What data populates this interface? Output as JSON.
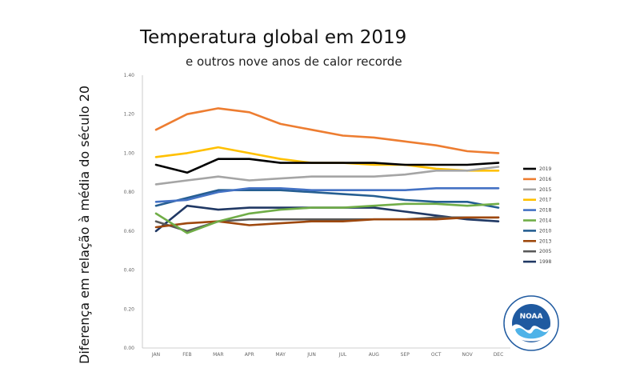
{
  "chart_data": {
    "type": "line",
    "title": "Temperatura global em 2019",
    "subtitle": "e outros nove anos  de calor recorde",
    "xlabel": "",
    "ylabel": "Diferença em relação à média do século 20",
    "categories": [
      "JAN",
      "FEB",
      "MAR",
      "APR",
      "MAY",
      "JUN",
      "JUL",
      "AUG",
      "SEP",
      "OCT",
      "NOV",
      "DEC"
    ],
    "ylim": [
      0,
      1.4
    ],
    "yticks": [
      "0.00",
      "0.20",
      "0.40",
      "0.60",
      "0.80",
      "1.00",
      "1.20",
      "1.40"
    ],
    "grid": false,
    "legend_position": "right",
    "series": [
      {
        "name": "2019",
        "color": "#000000",
        "values": [
          0.94,
          0.9,
          0.97,
          0.97,
          0.95,
          0.95,
          0.95,
          0.95,
          0.94,
          0.94,
          0.94,
          0.95
        ]
      },
      {
        "name": "2016",
        "color": "#ed7d31",
        "values": [
          1.12,
          1.2,
          1.23,
          1.21,
          1.15,
          1.12,
          1.09,
          1.08,
          1.06,
          1.04,
          1.01,
          1.0
        ]
      },
      {
        "name": "2015",
        "color": "#a5a5a5",
        "values": [
          0.84,
          0.86,
          0.88,
          0.86,
          0.87,
          0.88,
          0.88,
          0.88,
          0.89,
          0.91,
          0.91,
          0.93
        ]
      },
      {
        "name": "2017",
        "color": "#ffc000",
        "values": [
          0.98,
          1.0,
          1.03,
          1.0,
          0.97,
          0.95,
          0.95,
          0.94,
          0.94,
          0.92,
          0.91,
          0.91
        ]
      },
      {
        "name": "2018",
        "color": "#4472c4",
        "values": [
          0.75,
          0.76,
          0.8,
          0.82,
          0.82,
          0.81,
          0.81,
          0.81,
          0.81,
          0.82,
          0.82,
          0.82
        ]
      },
      {
        "name": "2014",
        "color": "#70ad47",
        "values": [
          0.69,
          0.59,
          0.65,
          0.69,
          0.71,
          0.72,
          0.72,
          0.73,
          0.74,
          0.74,
          0.73,
          0.74
        ]
      },
      {
        "name": "2010",
        "color": "#255e91",
        "values": [
          0.73,
          0.77,
          0.81,
          0.81,
          0.81,
          0.8,
          0.79,
          0.78,
          0.76,
          0.75,
          0.75,
          0.72
        ]
      },
      {
        "name": "2013",
        "color": "#9e480e",
        "values": [
          0.62,
          0.64,
          0.65,
          0.63,
          0.64,
          0.65,
          0.65,
          0.66,
          0.66,
          0.66,
          0.67,
          0.67
        ]
      },
      {
        "name": "2005",
        "color": "#595959",
        "values": [
          0.65,
          0.6,
          0.65,
          0.66,
          0.66,
          0.66,
          0.66,
          0.66,
          0.66,
          0.67,
          0.67,
          0.67
        ]
      },
      {
        "name": "1998",
        "color": "#203864",
        "values": [
          0.6,
          0.73,
          0.71,
          0.72,
          0.72,
          0.72,
          0.72,
          0.72,
          0.7,
          0.68,
          0.66,
          0.65
        ]
      }
    ]
  },
  "logo": {
    "name": "noaa-logo",
    "text": "NOAA"
  }
}
